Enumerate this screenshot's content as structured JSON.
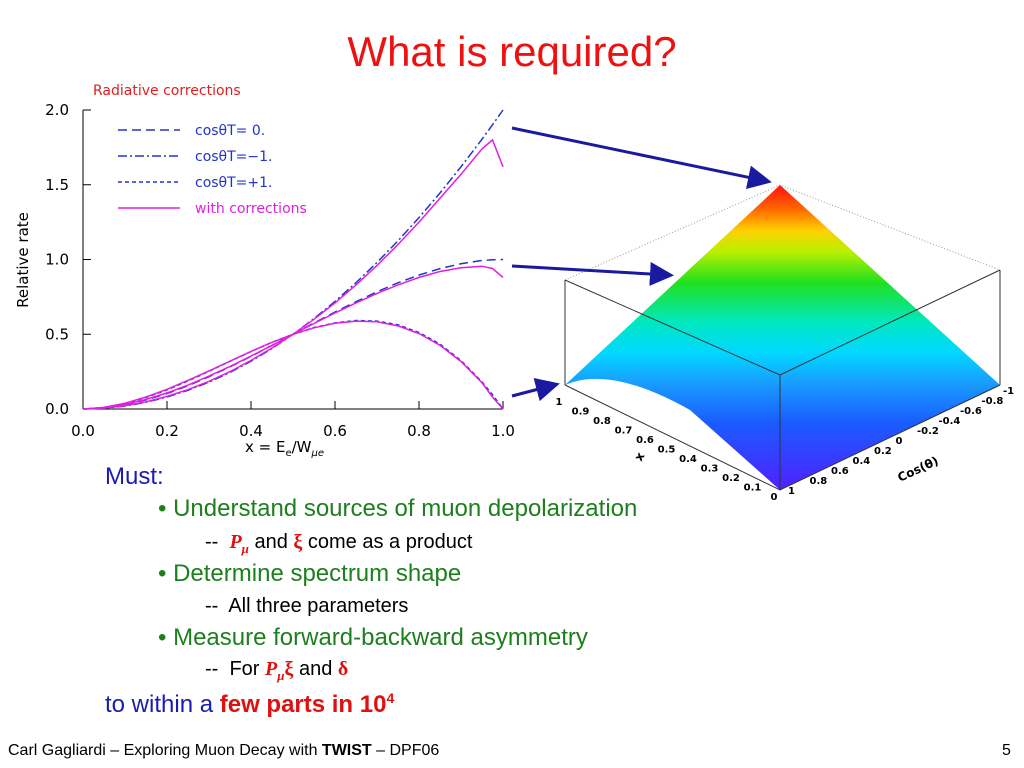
{
  "title": "What is required?",
  "chart_data": {
    "type": "line",
    "title": "Radiative corrections",
    "x_label": [
      "x = E",
      "e",
      "/W",
      "μe"
    ],
    "y_label": "Relative rate",
    "x": [
      0,
      0.05,
      0.1,
      0.15,
      0.2,
      0.25,
      0.3,
      0.35,
      0.4,
      0.45,
      0.5,
      0.55,
      0.6,
      0.65,
      0.7,
      0.75,
      0.8,
      0.85,
      0.9,
      0.95,
      0.975,
      1.0
    ],
    "series": [
      {
        "name": "cosθT= 0.",
        "color": "#2233cc",
        "style": "dashed",
        "values": [
          0,
          0.007,
          0.028,
          0.061,
          0.104,
          0.156,
          0.216,
          0.282,
          0.352,
          0.425,
          0.5,
          0.575,
          0.648,
          0.718,
          0.784,
          0.844,
          0.896,
          0.939,
          0.972,
          0.993,
          0.998,
          1.0
        ]
      },
      {
        "name": "cosθT=−1.",
        "color": "#2233cc",
        "style": "dashdot",
        "values": [
          0,
          0.005,
          0.02,
          0.045,
          0.08,
          0.125,
          0.18,
          0.245,
          0.32,
          0.405,
          0.5,
          0.605,
          0.72,
          0.845,
          0.98,
          1.125,
          1.28,
          1.445,
          1.62,
          1.805,
          1.901,
          2.0
        ]
      },
      {
        "name": "cosθT=+1.",
        "color": "#2233cc",
        "style": "dotted",
        "values": [
          0,
          0.01,
          0.036,
          0.077,
          0.128,
          0.188,
          0.252,
          0.319,
          0.384,
          0.446,
          0.5,
          0.545,
          0.576,
          0.592,
          0.588,
          0.563,
          0.512,
          0.434,
          0.324,
          0.181,
          0.095,
          0
        ]
      },
      {
        "name": "with corrections",
        "color": "#e020e0",
        "style": "solid",
        "values": [
          0,
          0.008,
          0.03,
          0.064,
          0.108,
          0.16,
          0.22,
          0.285,
          0.354,
          0.426,
          0.5,
          0.572,
          0.643,
          0.71,
          0.773,
          0.83,
          0.88,
          0.92,
          0.945,
          0.955,
          0.94,
          0.88
        ]
      },
      {
        "color": "#e020e0",
        "style": "solid",
        "values": [
          0,
          0.006,
          0.022,
          0.048,
          0.084,
          0.13,
          0.185,
          0.25,
          0.325,
          0.408,
          0.5,
          0.6,
          0.71,
          0.83,
          0.96,
          1.1,
          1.25,
          1.41,
          1.57,
          1.74,
          1.8,
          1.62
        ]
      },
      {
        "color": "#e020e0",
        "style": "solid",
        "values": [
          0,
          0.011,
          0.039,
          0.08,
          0.132,
          0.192,
          0.255,
          0.32,
          0.385,
          0.446,
          0.5,
          0.543,
          0.573,
          0.588,
          0.583,
          0.556,
          0.505,
          0.426,
          0.318,
          0.175,
          0.08,
          0
        ]
      }
    ],
    "xlim": [
      0,
      1
    ],
    "ylim": [
      0,
      2
    ],
    "xticks": [
      {
        "value": 0,
        "label": "0.0"
      },
      0.2,
      0.4,
      0.6,
      0.8,
      {
        "value": 1,
        "label": "1.0"
      }
    ],
    "yticks": [
      {
        "value": 0,
        "label": "0.0"
      },
      0.5,
      {
        "value": 1,
        "label": "1.0"
      },
      1.5,
      {
        "value": 2,
        "label": "2.0"
      }
    ],
    "grid": false,
    "legend": "top-left"
  },
  "surface_plot": {
    "x_label": "x",
    "y_label": "Cos(θ)",
    "x_ticks": [
      "1",
      "0.9",
      "0.8",
      "0.7",
      "0.6",
      "0.5",
      "0.4",
      "0.3",
      "0.2",
      "0.1",
      "0"
    ],
    "y_ticks": [
      "1",
      "0.8",
      "0.6",
      "0.4",
      "0.2",
      "0",
      "-0.2",
      "-0.4",
      "-0.6",
      "-0.8",
      "-1"
    ]
  },
  "body": {
    "must": "Must:",
    "bullets": [
      {
        "text": "Understand sources of muon depolarization",
        "sub": [
          "--",
          "P",
          "μ",
          "and",
          "ξ",
          "come as a product"
        ]
      },
      {
        "text": "Determine spectrum shape",
        "sub": [
          "--",
          "All three parameters"
        ]
      },
      {
        "text": "Measure forward-backward asymmetry",
        "sub": [
          "--",
          "For",
          "P",
          "μ",
          "ξ",
          "and",
          "δ"
        ]
      }
    ],
    "closing": [
      "to within a",
      "few parts in 10",
      "4"
    ]
  },
  "footer": {
    "left": [
      "Carl Gagliardi – Exploring Muon Decay with",
      "TWIST",
      "– DPF06"
    ],
    "page": "5"
  }
}
